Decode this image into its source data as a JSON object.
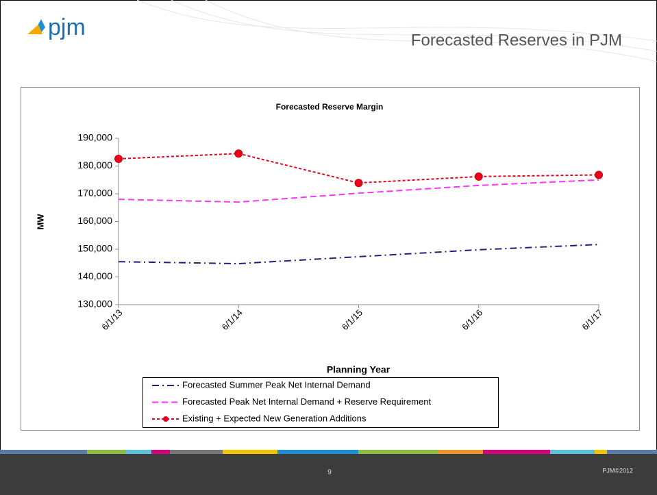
{
  "slide": {
    "logo": "pjm",
    "title": "Forecasted Reserves in PJM",
    "page_number": "9",
    "footer": "PJM©2012"
  },
  "chart_data": {
    "type": "line",
    "title": "Forecasted Reserve Margin",
    "x_label": "Planning Year",
    "y_label": "MW",
    "categories": [
      "6/1/13",
      "6/1/14",
      "6/1/15",
      "6/1/16",
      "6/1/17"
    ],
    "series": [
      {
        "name": "Forecasted Summer Peak Net Internal Demand",
        "color": "#1f1f7a",
        "line_style": "dash-dot",
        "marker": false,
        "values": [
          145500,
          144800,
          147300,
          149800,
          151700
        ]
      },
      {
        "name": "Forecasted Peak Net Internal Demand + Reserve Requirement",
        "color": "#ff33ff",
        "line_style": "dash",
        "marker": false,
        "values": [
          168000,
          167000,
          170200,
          173000,
          175000
        ]
      },
      {
        "name": "Existing + Expected New Generation Additions",
        "color": "#e8001c",
        "line_style": "dot",
        "marker": true,
        "values": [
          182600,
          184500,
          173900,
          176200,
          176800
        ]
      }
    ],
    "ylim": [
      130000,
      190000
    ],
    "yticks": [
      {
        "value": 130000,
        "label": "130,000"
      },
      {
        "value": 140000,
        "label": "140,000"
      },
      {
        "value": 150000,
        "label": "150,000"
      },
      {
        "value": 160000,
        "label": "160,000"
      },
      {
        "value": 170000,
        "label": "170,000"
      },
      {
        "value": 180000,
        "label": "180,000"
      },
      {
        "value": 190000,
        "label": "190,000"
      }
    ],
    "grid": false
  }
}
